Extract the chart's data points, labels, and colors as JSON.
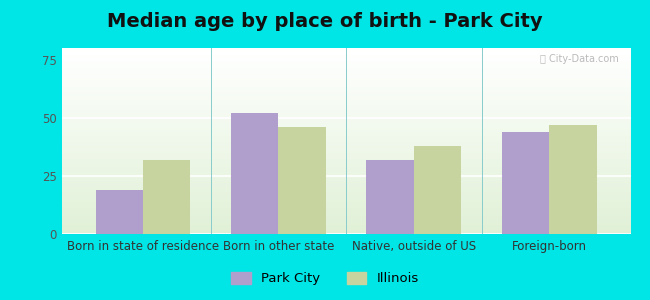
{
  "title": "Median age by place of birth - Park City",
  "categories": [
    "Born in state of residence",
    "Born in other state",
    "Native, outside of US",
    "Foreign-born"
  ],
  "park_city_values": [
    19,
    52,
    32,
    44
  ],
  "illinois_values": [
    32,
    46,
    38,
    47
  ],
  "park_city_color": "#b09fcc",
  "illinois_color": "#c8d4a0",
  "background_outer": "#00e5e5",
  "ylim": [
    0,
    80
  ],
  "yticks": [
    0,
    25,
    50,
    75
  ],
  "legend_labels": [
    "Park City",
    "Illinois"
  ],
  "bar_width": 0.35,
  "title_fontsize": 14,
  "tick_fontsize": 8.5,
  "legend_fontsize": 9.5
}
